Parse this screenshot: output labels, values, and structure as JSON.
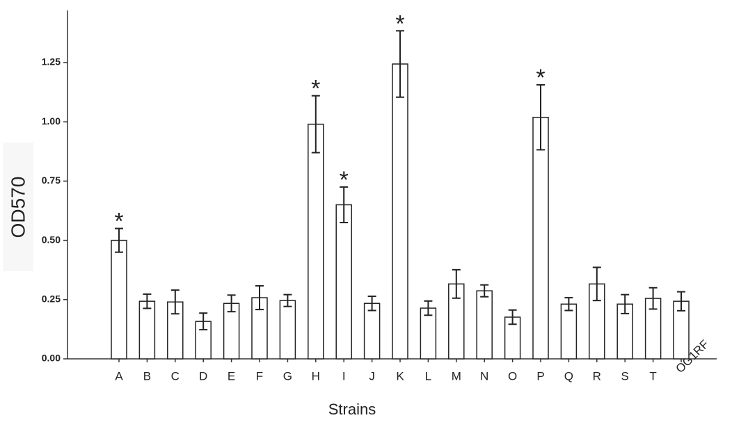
{
  "chart_data": {
    "type": "bar",
    "x_label": "Strains",
    "y_label": "OD570",
    "categories": [
      "A",
      "B",
      "C",
      "D",
      "E",
      "F",
      "G",
      "H",
      "I",
      "J",
      "K",
      "L",
      "M",
      "N",
      "O",
      "P",
      "Q",
      "R",
      "S",
      "T",
      "OG1RF"
    ],
    "values": [
      0.5,
      0.243,
      0.24,
      0.158,
      0.234,
      0.258,
      0.246,
      0.99,
      0.65,
      0.234,
      1.244,
      0.214,
      0.316,
      0.287,
      0.176,
      1.019,
      0.231,
      0.316,
      0.231,
      0.255,
      0.243
    ],
    "errors": [
      0.05,
      0.03,
      0.05,
      0.035,
      0.035,
      0.05,
      0.025,
      0.12,
      0.075,
      0.03,
      0.14,
      0.03,
      0.06,
      0.025,
      0.03,
      0.137,
      0.027,
      0.07,
      0.04,
      0.045,
      0.04
    ],
    "color": "#ffffff",
    "ylim": [
      0,
      1.47
    ],
    "yticks": [
      {
        "value": 0,
        "label": "0.00"
      },
      {
        "value": 0.25,
        "label": "0.25"
      },
      {
        "value": 0.5,
        "label": "0.50"
      },
      {
        "value": 0.75,
        "label": "0.75"
      },
      {
        "value": 1,
        "label": "1.00"
      },
      {
        "value": 1.25,
        "label": "1.25"
      }
    ],
    "annotations": [
      {
        "text": "*",
        "category": "A"
      },
      {
        "text": "*",
        "category": "H"
      },
      {
        "text": "*",
        "category": "I"
      },
      {
        "text": "*",
        "category": "K"
      },
      {
        "text": "*",
        "category": "P"
      }
    ],
    "grid": false
  }
}
